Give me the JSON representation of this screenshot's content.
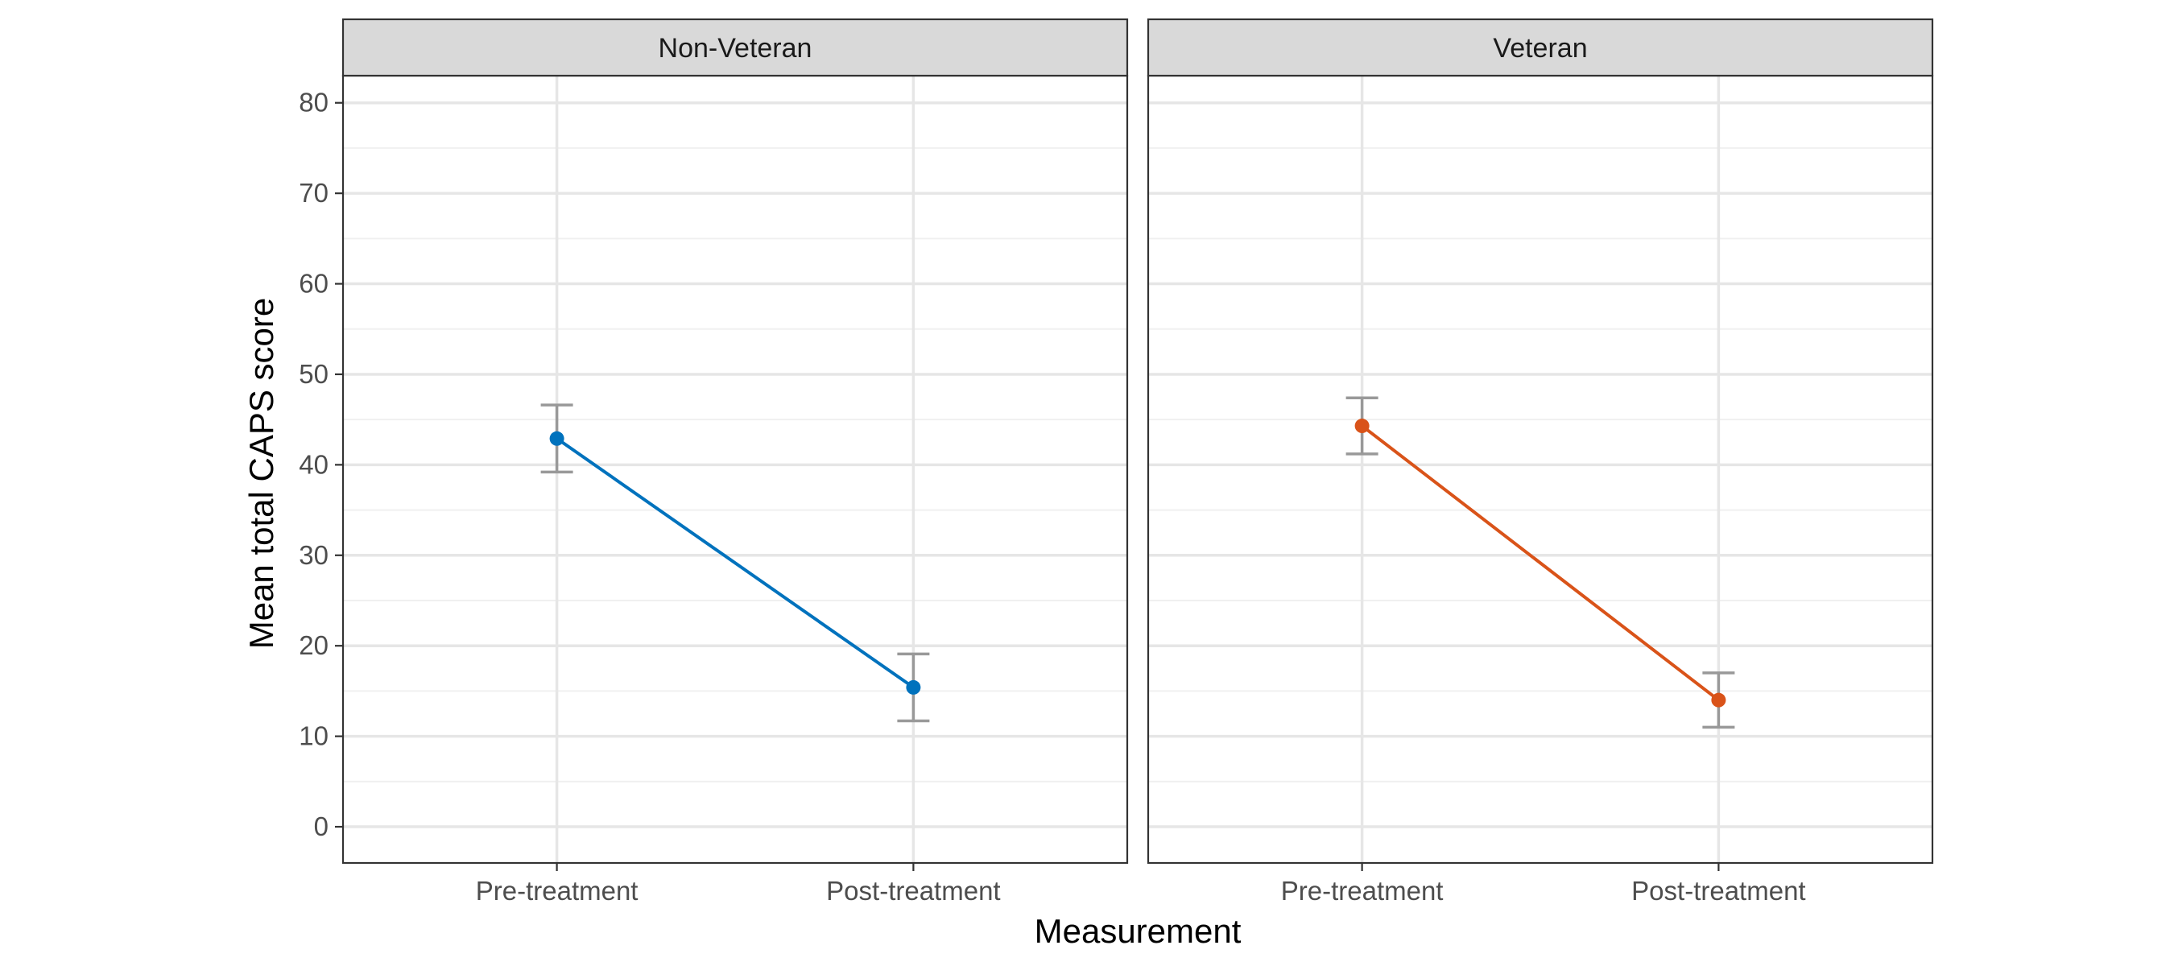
{
  "chart_data": {
    "type": "line",
    "title": "",
    "xlabel": "Measurement",
    "ylabel": "Mean total CAPS score",
    "categories": [
      "Pre-treatment",
      "Post-treatment"
    ],
    "ylim": [
      -4,
      83
    ],
    "yticks": [
      0,
      10,
      20,
      30,
      40,
      50,
      60,
      70,
      80
    ],
    "grid": true,
    "legend": "none",
    "panels": [
      {
        "name": "Non-Veteran",
        "color": "#0072BD",
        "values": [
          42.9,
          15.4
        ],
        "ci_low": [
          39.2,
          11.7
        ],
        "ci_high": [
          46.6,
          19.1
        ]
      },
      {
        "name": "Veteran",
        "color": "#D95319",
        "values": [
          44.3,
          14.0
        ],
        "ci_low": [
          41.2,
          11.0
        ],
        "ci_high": [
          47.4,
          17.0
        ]
      }
    ],
    "errorbar_color": "#999999"
  }
}
